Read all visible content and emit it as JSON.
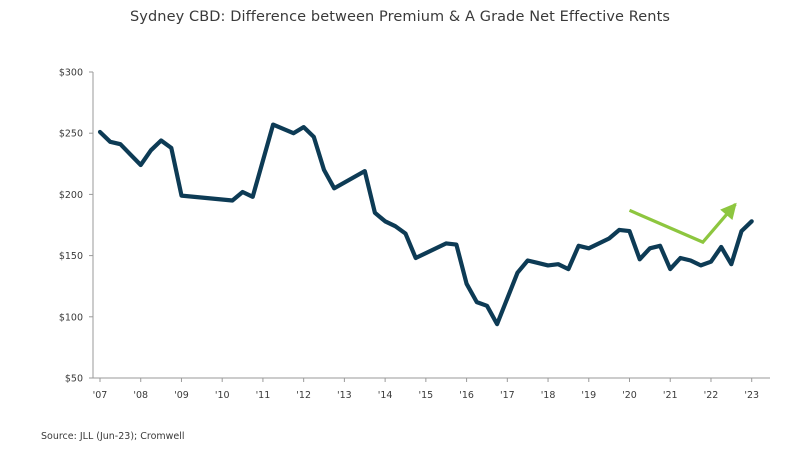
{
  "title": "Sydney CBD: Difference between Premium & A Grade Net Effective Rents",
  "source": "Source: JLL (Jun-23); Cromwell",
  "colors": {
    "series": "#0d3b55",
    "arrow": "#8dc63f",
    "axis": "#9a9a9a",
    "text": "#3a3a3a"
  },
  "chart_data": {
    "type": "line",
    "title": "Sydney CBD: Difference between Premium & A Grade Net Effective Rents",
    "xlabel": "",
    "ylabel": "",
    "x_ticks": [
      "'07",
      "'08",
      "'09",
      "'10",
      "'11",
      "'12",
      "'13",
      "'14",
      "'15",
      "'16",
      "'17",
      "'18",
      "'19",
      "'20",
      "'21",
      "'22",
      "'23"
    ],
    "y_ticks": [
      "$50",
      "$100",
      "$150",
      "$200",
      "$250",
      "$300"
    ],
    "xlim": [
      2007,
      2023.4
    ],
    "ylim": [
      50,
      300
    ],
    "grid": false,
    "series": [
      {
        "x": [
          2007.0,
          2007.25,
          2007.5,
          2008.0,
          2008.25,
          2008.5,
          2008.75,
          2009.0,
          2010.25,
          2010.5,
          2010.75,
          2011.25,
          2011.75,
          2012.0,
          2012.25,
          2012.5,
          2012.75,
          2013.5,
          2013.75,
          2014.0,
          2014.25,
          2014.5,
          2014.75,
          2015.5,
          2015.75,
          2016.0,
          2016.25,
          2016.5,
          2016.75,
          2017.25,
          2017.5,
          2017.75,
          2018.0,
          2018.25,
          2018.5,
          2018.75,
          2019.0,
          2019.5,
          2019.75,
          2020.0,
          2020.25,
          2020.5,
          2020.75,
          2021.0,
          2021.25,
          2021.5,
          2021.75,
          2022.0,
          2022.25,
          2022.5,
          2022.75,
          2023.0
        ],
        "y": [
          251,
          243,
          241,
          224,
          236,
          244,
          238,
          199,
          195,
          202,
          198,
          257,
          250,
          255,
          247,
          220,
          205,
          219,
          185,
          178,
          174,
          168,
          148,
          160,
          159,
          127,
          112,
          109,
          94,
          136,
          146,
          144,
          142,
          143,
          139,
          158,
          156,
          164,
          171,
          170,
          147,
          156,
          158,
          139,
          148,
          146,
          142,
          145,
          157,
          143,
          170,
          178
        ]
      }
    ],
    "annotations": [
      {
        "type": "arrow",
        "x": [
          2020.0,
          2021.8,
          2022.6
        ],
        "y": [
          187,
          161,
          192
        ]
      }
    ]
  }
}
